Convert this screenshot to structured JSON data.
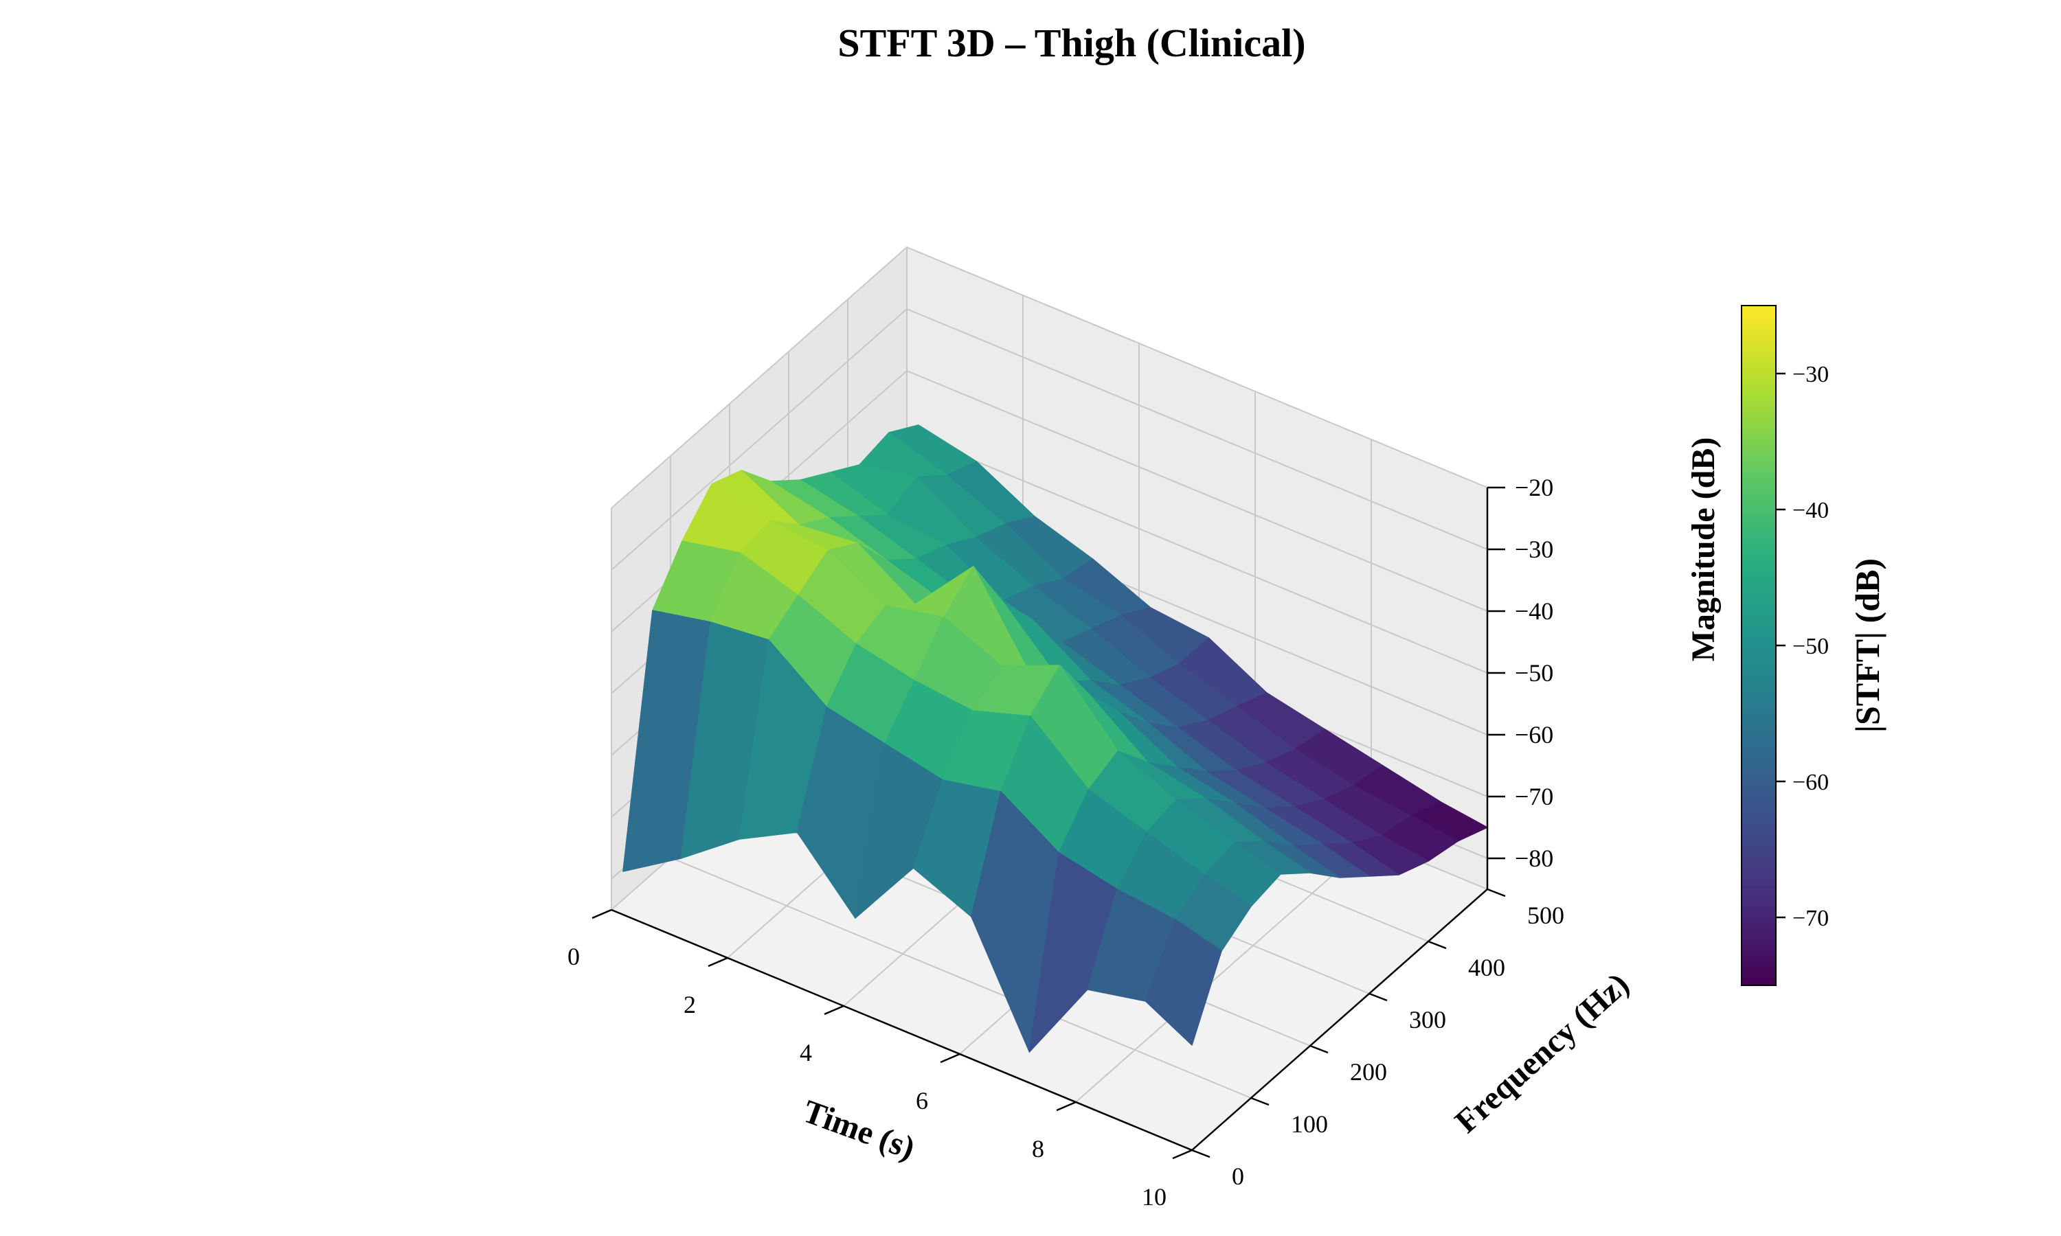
{
  "chart_data": {
    "type": "surface3d",
    "title": "STFT 3D – Thigh (Clinical)",
    "xlabel": "Time (s)",
    "ylabel": "Frequency (Hz)",
    "zlabel": "Magnitude (dB)",
    "xlim": [
      0,
      10
    ],
    "ylim": [
      0,
      500
    ],
    "zlim": [
      -85,
      -20
    ],
    "x_ticks": [
      "0",
      "2",
      "4",
      "6",
      "8",
      "10"
    ],
    "y_ticks": [
      "0",
      "100",
      "200",
      "300",
      "400",
      "500"
    ],
    "z_ticks": [
      "−20",
      "−30",
      "−40",
      "−50",
      "−60",
      "−70",
      "−80"
    ],
    "colormap": "viridis",
    "grid": true,
    "colorbar": {
      "label": "|STFT| (dB)",
      "range": [
        -75,
        -25
      ],
      "ticks": [
        "−30",
        "−40",
        "−50",
        "−60",
        "−70"
      ]
    },
    "frequencies_hz": [
      0,
      50,
      100,
      150,
      200,
      250,
      300,
      350,
      400,
      450,
      500
    ],
    "series": [
      {
        "time_s": 0.2,
        "magnitude_db": [
          -78,
          -40,
          -33,
          -28,
          -30,
          -36,
          -40,
          -43,
          -46,
          -45,
          -48
        ]
      },
      {
        "time_s": 1.2,
        "magnitude_db": [
          -72,
          -38,
          -31,
          -30,
          -35,
          -38,
          -42,
          -46,
          -44,
          -48,
          -50
        ]
      },
      {
        "time_s": 2.2,
        "magnitude_db": [
          -65,
          -37,
          -34,
          -31,
          -34,
          -41,
          -45,
          -47,
          -50,
          -52,
          -55
        ]
      },
      {
        "time_s": 3.2,
        "magnitude_db": [
          -60,
          -44,
          -38,
          -36,
          -40,
          -44,
          -48,
          -52,
          -54,
          -57,
          -58
        ]
      },
      {
        "time_s": 4.2,
        "magnitude_db": [
          -70,
          -46,
          -40,
          -34,
          -30,
          -40,
          -47,
          -55,
          -57,
          -59,
          -62
        ]
      },
      {
        "time_s": 5.2,
        "magnitude_db": [
          -58,
          -48,
          -41,
          -38,
          -44,
          -49,
          -53,
          -58,
          -61,
          -63,
          -63
        ]
      },
      {
        "time_s": 6.2,
        "magnitude_db": [
          -62,
          -46,
          -38,
          -34,
          -43,
          -50,
          -56,
          -61,
          -64,
          -66,
          -68
        ]
      },
      {
        "time_s": 7.2,
        "magnitude_db": [
          -80,
          -52,
          -46,
          -44,
          -50,
          -55,
          -60,
          -64,
          -67,
          -69,
          -70
        ]
      },
      {
        "time_s": 8.2,
        "magnitude_db": [
          -66,
          -54,
          -49,
          -48,
          -52,
          -57,
          -62,
          -66,
          -69,
          -71,
          -72
        ]
      },
      {
        "time_s": 9.2,
        "magnitude_db": [
          -64,
          -55,
          -52,
          -51,
          -55,
          -60,
          -64,
          -68,
          -71,
          -72,
          -74
        ]
      },
      {
        "time_s": 10.0,
        "magnitude_db": [
          -68,
          -57,
          -54,
          -53,
          -57,
          -62,
          -66,
          -70,
          -72,
          -73,
          -75
        ]
      }
    ]
  }
}
